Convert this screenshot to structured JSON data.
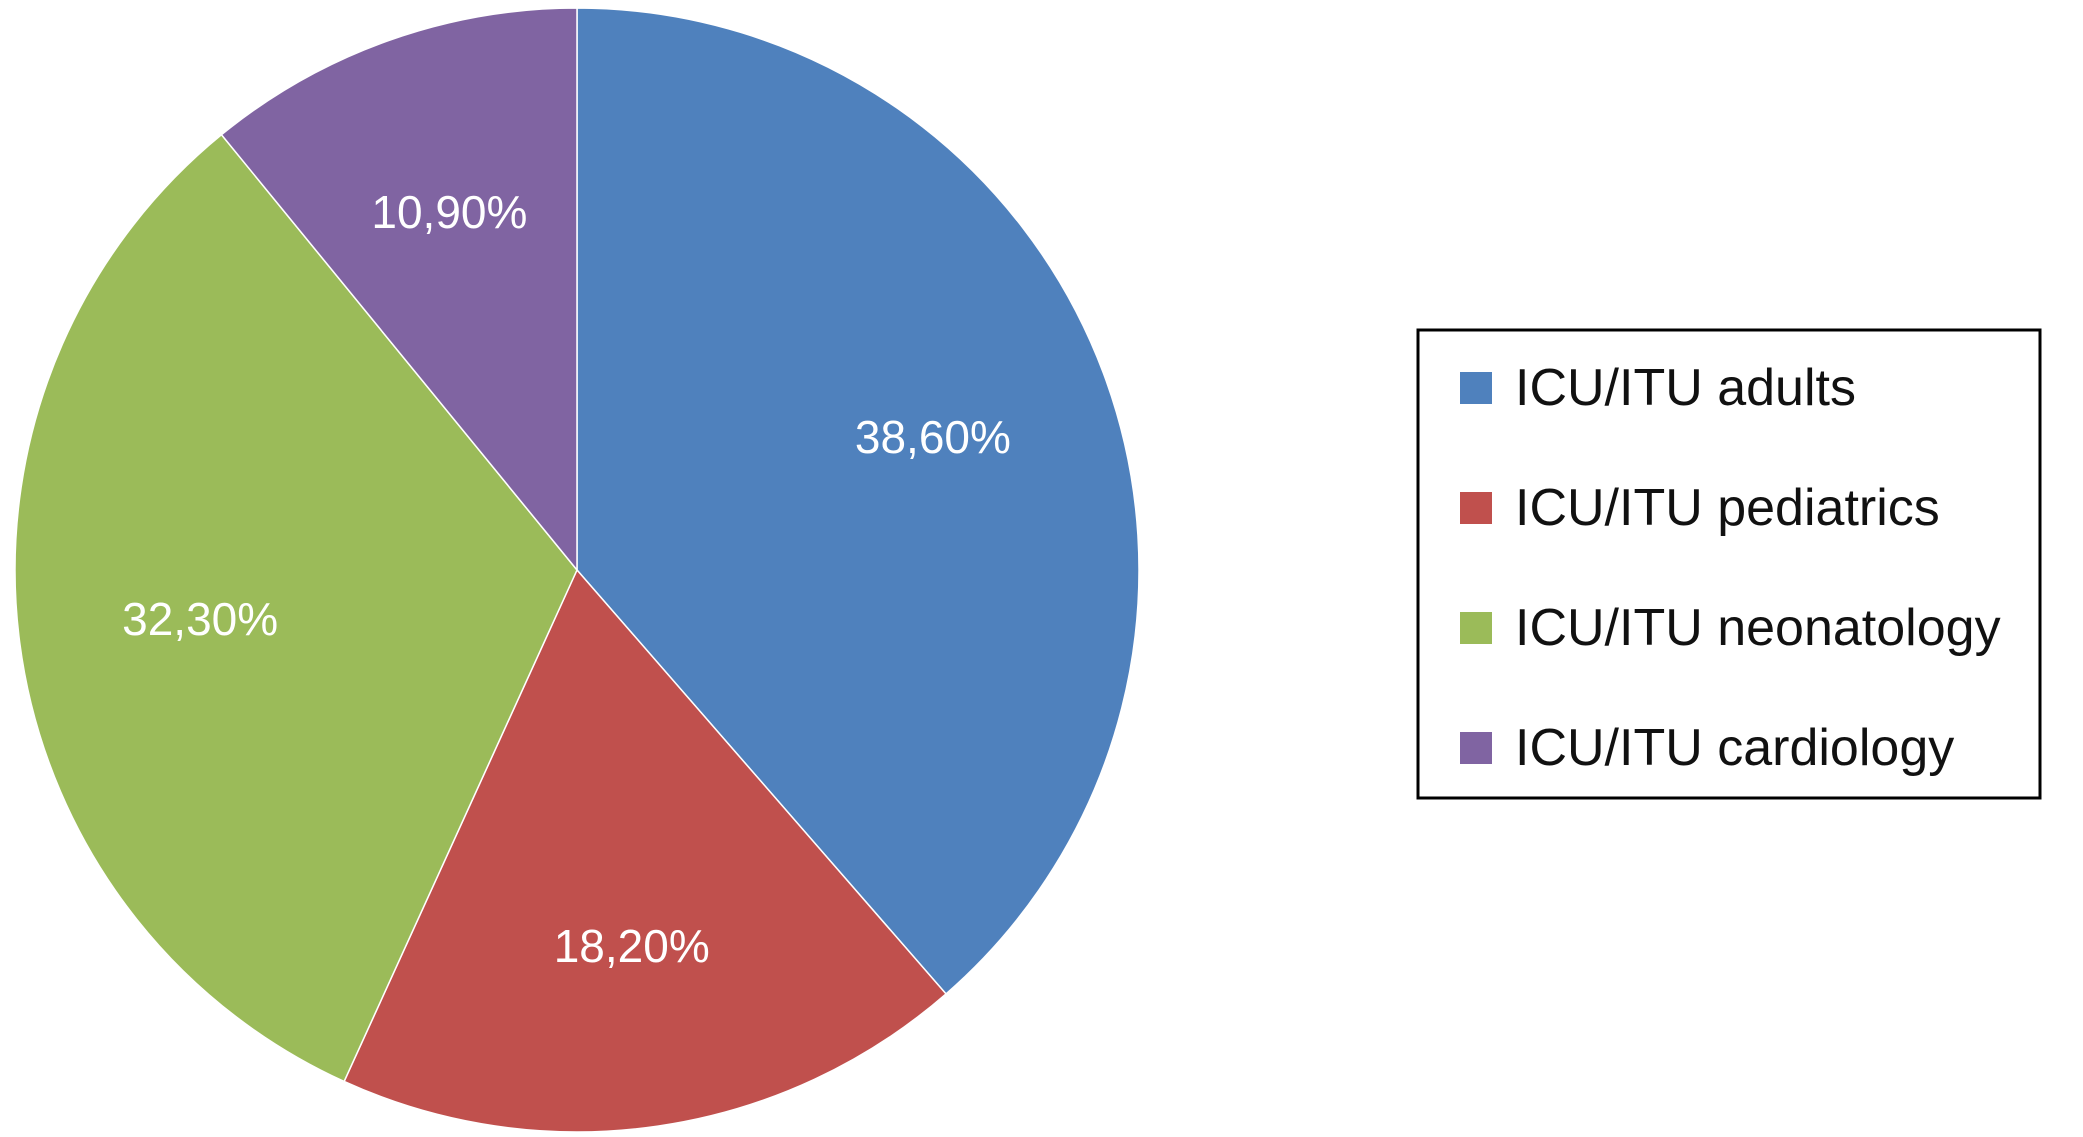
{
  "chart_data": {
    "type": "pie",
    "labels": [
      "ICU/ITU adults",
      "ICU/ITU pediatrics",
      "ICU/ITU neonatology",
      "ICU/ITU cardiology"
    ],
    "values": [
      38.6,
      18.2,
      32.3,
      10.9
    ],
    "data_labels": [
      "38,60%",
      "18,20%",
      "32,30%",
      "10,90%"
    ],
    "colors": [
      "#4f81bd",
      "#c0504d",
      "#9bbb59",
      "#8064a2"
    ],
    "start_angle_deg": 0,
    "direction": "clockwise",
    "legend_position": "right",
    "title": ""
  }
}
